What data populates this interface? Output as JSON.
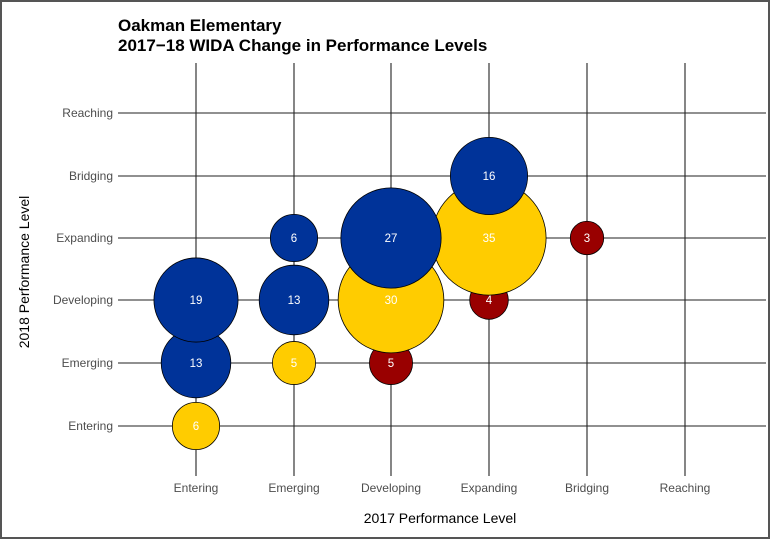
{
  "chart_data": {
    "type": "scatter",
    "subtype": "bubble",
    "title": "Oakman Elementary",
    "subtitle": "2017−18 WIDA Change in Performance Levels",
    "xlabel": "2017 Performance Level",
    "ylabel": "2018 Performance Level",
    "x_categories": [
      "Entering",
      "Emerging",
      "Developing",
      "Expanding",
      "Bridging",
      "Reaching"
    ],
    "y_categories": [
      "Entering",
      "Emerging",
      "Developing",
      "Expanding",
      "Bridging",
      "Reaching"
    ],
    "grid": true,
    "legend": "none",
    "colors": {
      "improved": "#003399",
      "same": "#FFCC00",
      "declined": "#990000"
    },
    "points": [
      {
        "x": "Developing",
        "y": "Emerging",
        "n": 5,
        "group": "declined"
      },
      {
        "x": "Expanding",
        "y": "Developing",
        "n": 4,
        "group": "declined"
      },
      {
        "x": "Bridging",
        "y": "Expanding",
        "n": 3,
        "group": "declined"
      },
      {
        "x": "Entering",
        "y": "Entering",
        "n": 6,
        "group": "same"
      },
      {
        "x": "Emerging",
        "y": "Emerging",
        "n": 5,
        "group": "same"
      },
      {
        "x": "Developing",
        "y": "Developing",
        "n": 30,
        "group": "same"
      },
      {
        "x": "Expanding",
        "y": "Expanding",
        "n": 35,
        "group": "same"
      },
      {
        "x": "Entering",
        "y": "Emerging",
        "n": 13,
        "group": "improved"
      },
      {
        "x": "Entering",
        "y": "Developing",
        "n": 19,
        "group": "improved"
      },
      {
        "x": "Emerging",
        "y": "Developing",
        "n": 13,
        "group": "improved"
      },
      {
        "x": "Emerging",
        "y": "Expanding",
        "n": 6,
        "group": "improved"
      },
      {
        "x": "Developing",
        "y": "Expanding",
        "n": 27,
        "group": "improved"
      },
      {
        "x": "Expanding",
        "y": "Bridging",
        "n": 16,
        "group": "improved"
      }
    ]
  }
}
